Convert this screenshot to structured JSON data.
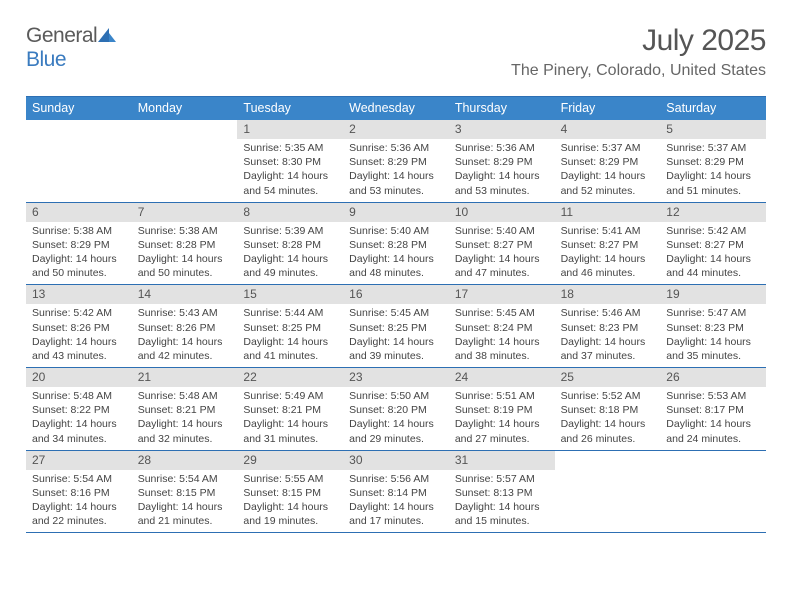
{
  "logo": {
    "text_general": "General",
    "text_blue": "Blue"
  },
  "title": "July 2025",
  "location": "The Pinery, Colorado, United States",
  "colors": {
    "header_bar": "#3a85c9",
    "border": "#2d6fb3",
    "daynum_bg": "#e2e2e2",
    "logo_blue": "#3a7bbf",
    "text": "#444"
  },
  "day_headers": [
    "Sunday",
    "Monday",
    "Tuesday",
    "Wednesday",
    "Thursday",
    "Friday",
    "Saturday"
  ],
  "weeks": [
    [
      null,
      null,
      {
        "n": "1",
        "sr": "5:35 AM",
        "ss": "8:30 PM",
        "dl": "14 hours and 54 minutes."
      },
      {
        "n": "2",
        "sr": "5:36 AM",
        "ss": "8:29 PM",
        "dl": "14 hours and 53 minutes."
      },
      {
        "n": "3",
        "sr": "5:36 AM",
        "ss": "8:29 PM",
        "dl": "14 hours and 53 minutes."
      },
      {
        "n": "4",
        "sr": "5:37 AM",
        "ss": "8:29 PM",
        "dl": "14 hours and 52 minutes."
      },
      {
        "n": "5",
        "sr": "5:37 AM",
        "ss": "8:29 PM",
        "dl": "14 hours and 51 minutes."
      }
    ],
    [
      {
        "n": "6",
        "sr": "5:38 AM",
        "ss": "8:29 PM",
        "dl": "14 hours and 50 minutes."
      },
      {
        "n": "7",
        "sr": "5:38 AM",
        "ss": "8:28 PM",
        "dl": "14 hours and 50 minutes."
      },
      {
        "n": "8",
        "sr": "5:39 AM",
        "ss": "8:28 PM",
        "dl": "14 hours and 49 minutes."
      },
      {
        "n": "9",
        "sr": "5:40 AM",
        "ss": "8:28 PM",
        "dl": "14 hours and 48 minutes."
      },
      {
        "n": "10",
        "sr": "5:40 AM",
        "ss": "8:27 PM",
        "dl": "14 hours and 47 minutes."
      },
      {
        "n": "11",
        "sr": "5:41 AM",
        "ss": "8:27 PM",
        "dl": "14 hours and 46 minutes."
      },
      {
        "n": "12",
        "sr": "5:42 AM",
        "ss": "8:27 PM",
        "dl": "14 hours and 44 minutes."
      }
    ],
    [
      {
        "n": "13",
        "sr": "5:42 AM",
        "ss": "8:26 PM",
        "dl": "14 hours and 43 minutes."
      },
      {
        "n": "14",
        "sr": "5:43 AM",
        "ss": "8:26 PM",
        "dl": "14 hours and 42 minutes."
      },
      {
        "n": "15",
        "sr": "5:44 AM",
        "ss": "8:25 PM",
        "dl": "14 hours and 41 minutes."
      },
      {
        "n": "16",
        "sr": "5:45 AM",
        "ss": "8:25 PM",
        "dl": "14 hours and 39 minutes."
      },
      {
        "n": "17",
        "sr": "5:45 AM",
        "ss": "8:24 PM",
        "dl": "14 hours and 38 minutes."
      },
      {
        "n": "18",
        "sr": "5:46 AM",
        "ss": "8:23 PM",
        "dl": "14 hours and 37 minutes."
      },
      {
        "n": "19",
        "sr": "5:47 AM",
        "ss": "8:23 PM",
        "dl": "14 hours and 35 minutes."
      }
    ],
    [
      {
        "n": "20",
        "sr": "5:48 AM",
        "ss": "8:22 PM",
        "dl": "14 hours and 34 minutes."
      },
      {
        "n": "21",
        "sr": "5:48 AM",
        "ss": "8:21 PM",
        "dl": "14 hours and 32 minutes."
      },
      {
        "n": "22",
        "sr": "5:49 AM",
        "ss": "8:21 PM",
        "dl": "14 hours and 31 minutes."
      },
      {
        "n": "23",
        "sr": "5:50 AM",
        "ss": "8:20 PM",
        "dl": "14 hours and 29 minutes."
      },
      {
        "n": "24",
        "sr": "5:51 AM",
        "ss": "8:19 PM",
        "dl": "14 hours and 27 minutes."
      },
      {
        "n": "25",
        "sr": "5:52 AM",
        "ss": "8:18 PM",
        "dl": "14 hours and 26 minutes."
      },
      {
        "n": "26",
        "sr": "5:53 AM",
        "ss": "8:17 PM",
        "dl": "14 hours and 24 minutes."
      }
    ],
    [
      {
        "n": "27",
        "sr": "5:54 AM",
        "ss": "8:16 PM",
        "dl": "14 hours and 22 minutes."
      },
      {
        "n": "28",
        "sr": "5:54 AM",
        "ss": "8:15 PM",
        "dl": "14 hours and 21 minutes."
      },
      {
        "n": "29",
        "sr": "5:55 AM",
        "ss": "8:15 PM",
        "dl": "14 hours and 19 minutes."
      },
      {
        "n": "30",
        "sr": "5:56 AM",
        "ss": "8:14 PM",
        "dl": "14 hours and 17 minutes."
      },
      {
        "n": "31",
        "sr": "5:57 AM",
        "ss": "8:13 PM",
        "dl": "14 hours and 15 minutes."
      },
      null,
      null
    ]
  ],
  "labels": {
    "sunrise": "Sunrise:",
    "sunset": "Sunset:",
    "daylight": "Daylight:"
  }
}
